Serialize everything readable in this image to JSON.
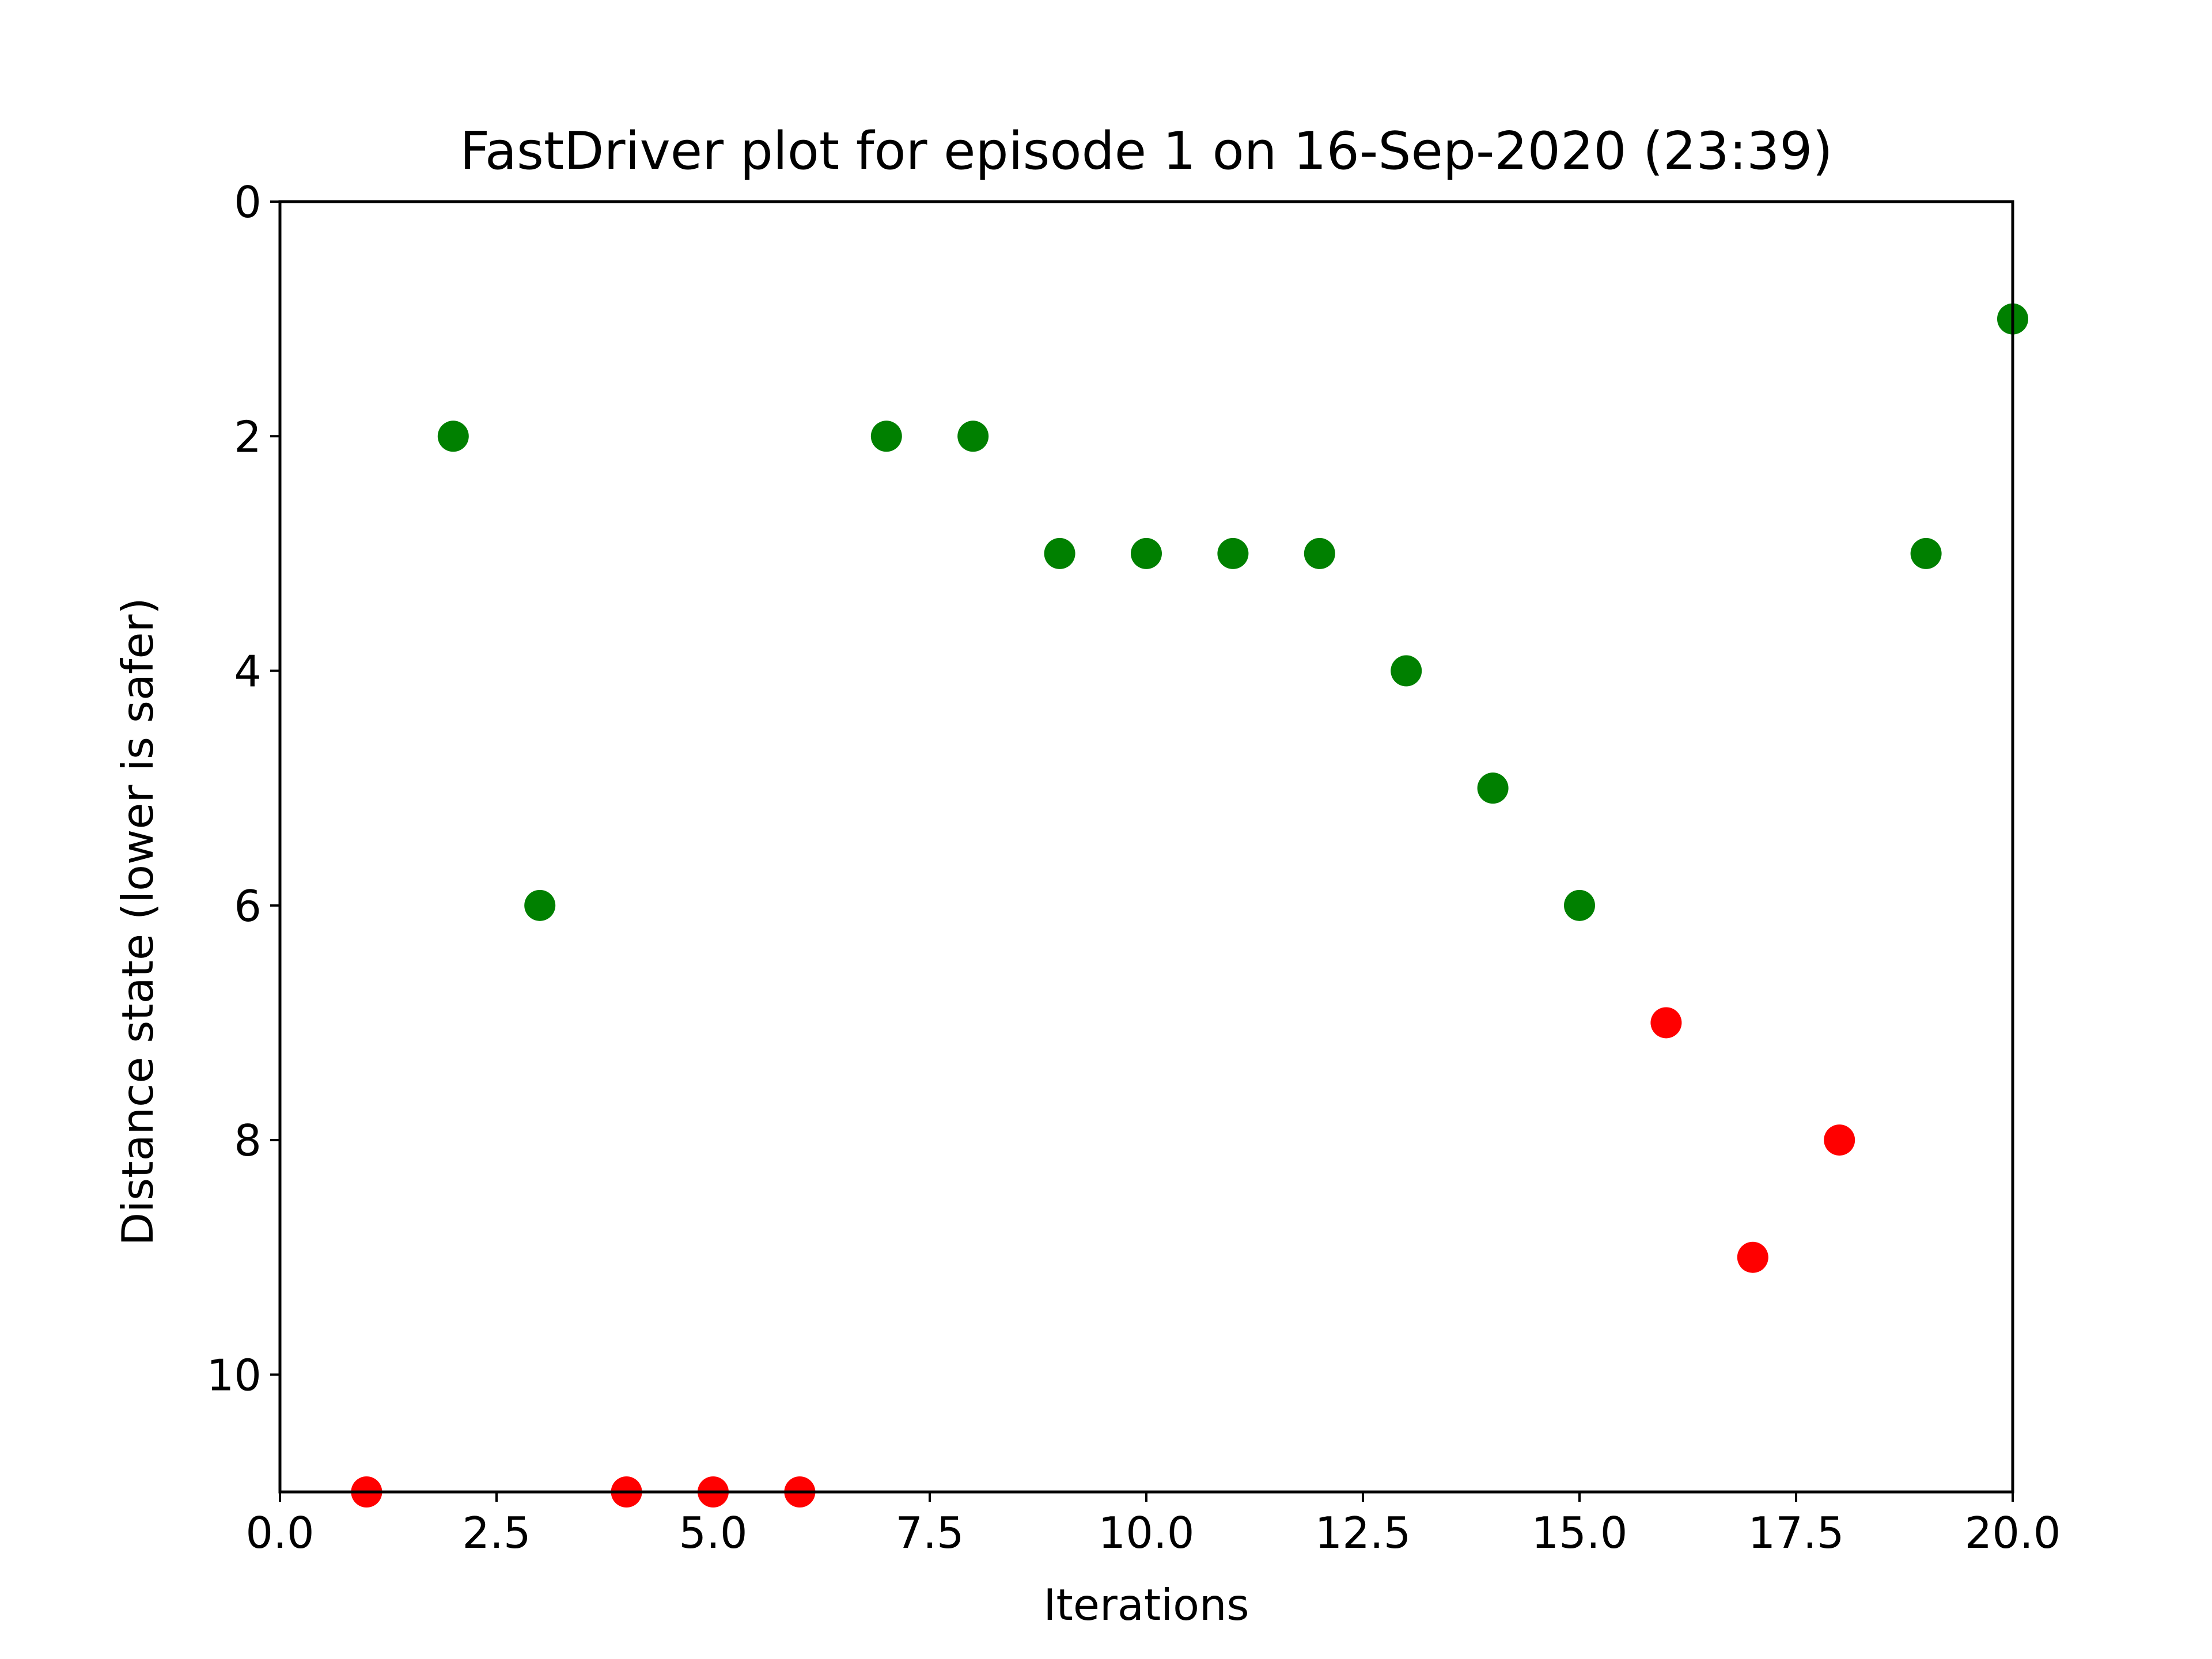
{
  "chart_data": {
    "type": "scatter",
    "title": "FastDriver plot for episode 1 on 16-Sep-2020 (23:39)",
    "xlabel": "Iterations",
    "ylabel": "Distance state (lower is safer)",
    "xlim": [
      0,
      20
    ],
    "ylim": [
      11,
      0
    ],
    "y_inverted": true,
    "grid": false,
    "xticks": [
      "0.0",
      "2.5",
      "5.0",
      "7.5",
      "10.0",
      "12.5",
      "15.0",
      "17.5",
      "20.0"
    ],
    "yticks": [
      "0",
      "2",
      "4",
      "6",
      "8",
      "10"
    ],
    "colors": {
      "safe": "#008000",
      "unsafe": "#ff0000"
    },
    "points": [
      {
        "x": 1,
        "y": 11,
        "color": "unsafe"
      },
      {
        "x": 2,
        "y": 2,
        "color": "safe"
      },
      {
        "x": 3,
        "y": 6,
        "color": "safe"
      },
      {
        "x": 4,
        "y": 11,
        "color": "unsafe"
      },
      {
        "x": 5,
        "y": 11,
        "color": "unsafe"
      },
      {
        "x": 6,
        "y": 11,
        "color": "unsafe"
      },
      {
        "x": 7,
        "y": 2,
        "color": "safe"
      },
      {
        "x": 8,
        "y": 2,
        "color": "safe"
      },
      {
        "x": 9,
        "y": 3,
        "color": "safe"
      },
      {
        "x": 10,
        "y": 3,
        "color": "safe"
      },
      {
        "x": 11,
        "y": 3,
        "color": "safe"
      },
      {
        "x": 12,
        "y": 3,
        "color": "safe"
      },
      {
        "x": 13,
        "y": 4,
        "color": "safe"
      },
      {
        "x": 14,
        "y": 5,
        "color": "safe"
      },
      {
        "x": 15,
        "y": 6,
        "color": "safe"
      },
      {
        "x": 16,
        "y": 7,
        "color": "unsafe"
      },
      {
        "x": 17,
        "y": 9,
        "color": "unsafe"
      },
      {
        "x": 18,
        "y": 8,
        "color": "unsafe"
      },
      {
        "x": 19,
        "y": 3,
        "color": "safe"
      },
      {
        "x": 20,
        "y": 1,
        "color": "safe"
      }
    ]
  }
}
